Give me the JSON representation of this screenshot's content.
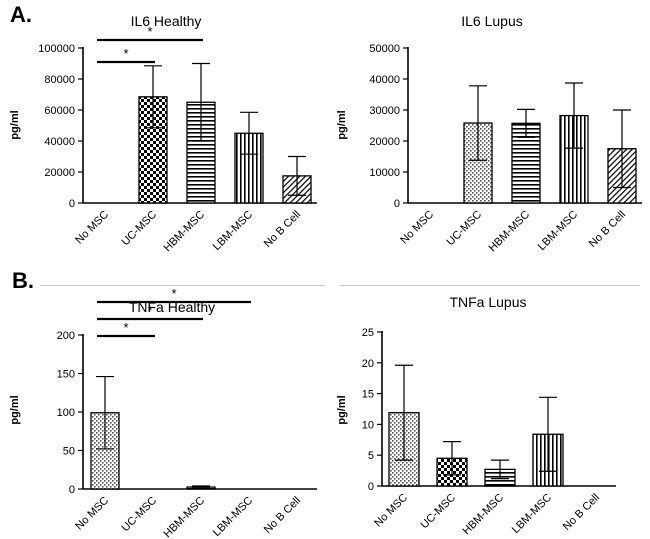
{
  "panel_labels": {
    "a": "A.",
    "b": "B."
  },
  "colors": {
    "ink": "#000000",
    "separator": "#c8c8c8"
  },
  "chart_data": [
    {
      "type": "bar",
      "title": "IL6 Healthy",
      "ylabel": "pg/ml",
      "xlabel": "",
      "categories": [
        "No MSC",
        "UC-MSC",
        "HBM-MSC",
        "LBM-MSC",
        "No B Cell"
      ],
      "values": [
        0,
        68500,
        65000,
        45000,
        17500
      ],
      "errors": [
        0,
        20000,
        25000,
        13500,
        12500
      ],
      "patterns": [
        "check",
        "check",
        "hlines",
        "vlines",
        "diag"
      ],
      "ylim": [
        0,
        100000
      ],
      "yticks": [
        "0",
        "20000",
        "40000",
        "60000",
        "80000",
        "100000"
      ],
      "significance": [
        {
          "from": "No MSC",
          "to": "UC-MSC",
          "label": "*"
        },
        {
          "from": "No MSC",
          "to": "HBM-MSC",
          "label": "*"
        }
      ]
    },
    {
      "type": "bar",
      "title": "IL6 Lupus",
      "ylabel": "pg/ml",
      "xlabel": "",
      "categories": [
        "No MSC",
        "UC-MSC",
        "HBM-MSC",
        "LBM-MSC",
        "No B Cell"
      ],
      "values": [
        0,
        25800,
        25700,
        28200,
        17500
      ],
      "errors": [
        0,
        12000,
        4500,
        10500,
        12500
      ],
      "patterns": [
        "check",
        "dots",
        "hlines",
        "vlines",
        "diag"
      ],
      "ylim": [
        0,
        50000
      ],
      "yticks": [
        "0",
        "10000",
        "20000",
        "30000",
        "40000",
        "50000"
      ],
      "significance": []
    },
    {
      "type": "bar",
      "title": "TNFa Healthy",
      "ylabel": "pg/ml",
      "xlabel": "",
      "categories": [
        "No MSC",
        "UC-MSC",
        "HBM-MSC",
        "LBM-MSC",
        "No B Cell"
      ],
      "values": [
        99,
        0,
        2.5,
        0,
        0
      ],
      "errors": [
        47,
        0,
        1.5,
        0,
        0
      ],
      "patterns": [
        "dots",
        "check",
        "hlines",
        "vlines",
        "diag"
      ],
      "ylim": [
        0,
        200
      ],
      "yticks": [
        "0",
        "50",
        "100",
        "150",
        "200"
      ],
      "significance": [
        {
          "from": "No MSC",
          "to": "UC-MSC",
          "label": "*"
        },
        {
          "from": "No MSC",
          "to": "HBM-MSC",
          "label": "*"
        },
        {
          "from": "No MSC",
          "to": "LBM-MSC",
          "label": "*"
        }
      ]
    },
    {
      "type": "bar",
      "title": "TNFa Lupus",
      "ylabel": "pg/ml",
      "xlabel": "",
      "categories": [
        "No MSC",
        "UC-MSC",
        "HBM-MSC",
        "LBM-MSC",
        "No B Cell"
      ],
      "values": [
        11.9,
        4.5,
        2.7,
        8.4,
        0
      ],
      "errors": [
        7.7,
        2.7,
        1.5,
        6.0,
        0
      ],
      "patterns": [
        "dots",
        "check",
        "hlines",
        "vlines",
        "diag"
      ],
      "ylim": [
        0,
        25
      ],
      "yticks": [
        "0",
        "5",
        "10",
        "15",
        "20",
        "25"
      ],
      "significance": []
    }
  ]
}
